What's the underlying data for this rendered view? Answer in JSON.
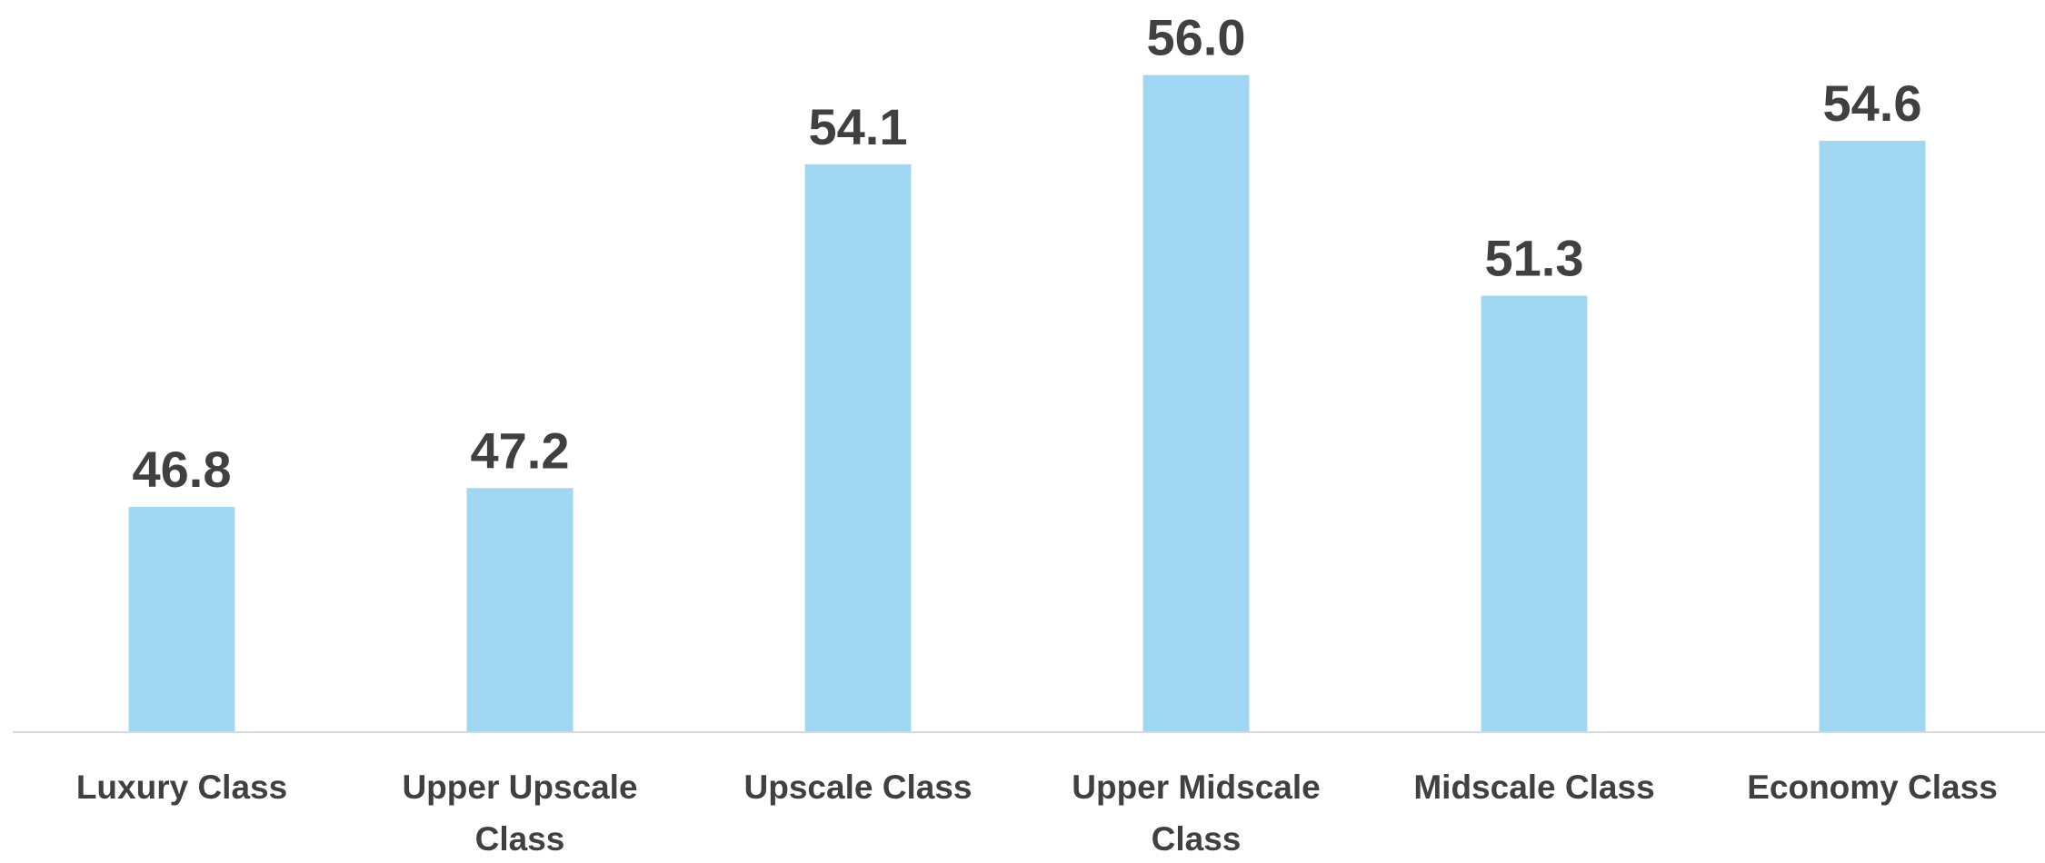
{
  "chart_data": {
    "type": "bar",
    "categories": [
      "Luxury Class",
      "Upper Upscale Class",
      "Upscale Class",
      "Upper Midscale Class",
      "Midscale Class",
      "Economy Class"
    ],
    "values": [
      46.8,
      47.2,
      54.1,
      56.0,
      51.3,
      54.6
    ],
    "value_labels": [
      "46.8",
      "47.2",
      "54.1",
      "56.0",
      "51.3",
      "54.6"
    ],
    "color": "#a0d8f3",
    "ylim": [
      42,
      57.6
    ]
  }
}
